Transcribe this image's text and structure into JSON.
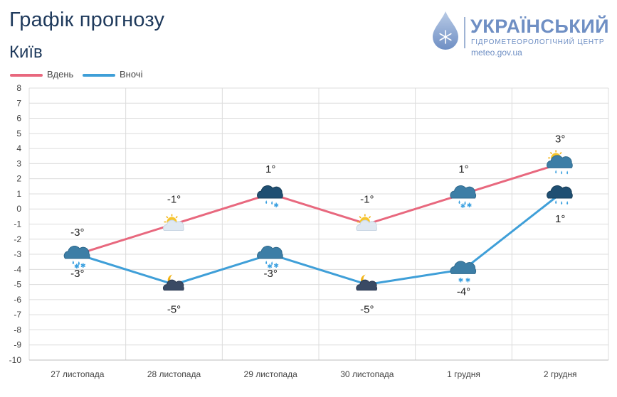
{
  "header": {
    "title": "Графік прогнозу",
    "city": "Київ"
  },
  "logo": {
    "name": "УКРАЇНСЬКИЙ",
    "subtitle": "ГІДРОМЕТЕОРОЛОГІЧНИЙ ЦЕНТР",
    "site": "meteo.gov.ua",
    "color": "#6f8fc4"
  },
  "chart_data": {
    "type": "line",
    "title": "Графік прогнозу",
    "subtitle": "Київ",
    "categories": [
      "27 листопада",
      "28 листопада",
      "29 листопада",
      "30 листопада",
      "1 грудня",
      "2 грудня"
    ],
    "series": [
      {
        "name": "Вдень",
        "color": "#e8687e",
        "values": [
          -3,
          -1,
          1,
          -1,
          1,
          3
        ],
        "labels": [
          "-3°",
          "-1°",
          "1°",
          "-1°",
          "1°",
          "3°"
        ],
        "icons": [
          "cloud-rain-snow-icon",
          "partly-cloudy-icon",
          "dark-cloud-rain-snow-icon",
          "partly-cloudy-icon",
          "cloud-rain-snow-icon",
          "sun-cloud-rain-icon"
        ]
      },
      {
        "name": "Вночі",
        "color": "#3f9fd8",
        "values": [
          -3,
          -5,
          -3,
          -5,
          -4,
          1
        ],
        "labels": [
          "-3°",
          "-5°",
          "-3°",
          "-5°",
          "-4°",
          "1°"
        ],
        "icons": [
          "cloud-rain-snow-icon",
          "moon-cloud-icon",
          "cloud-rain-snow-icon",
          "moon-cloud-icon",
          "cloud-snow-icon",
          "dark-cloud-rain-icon"
        ]
      }
    ],
    "yticks": [
      "8",
      "7",
      "6",
      "5",
      "4",
      "3",
      "2",
      "1",
      "0",
      "-1",
      "-2",
      "-3",
      "-4",
      "-5",
      "-6",
      "-7",
      "-8",
      "-9",
      "-10"
    ],
    "ylim": [
      -10,
      8
    ],
    "grid": true,
    "legend": "top-left"
  }
}
